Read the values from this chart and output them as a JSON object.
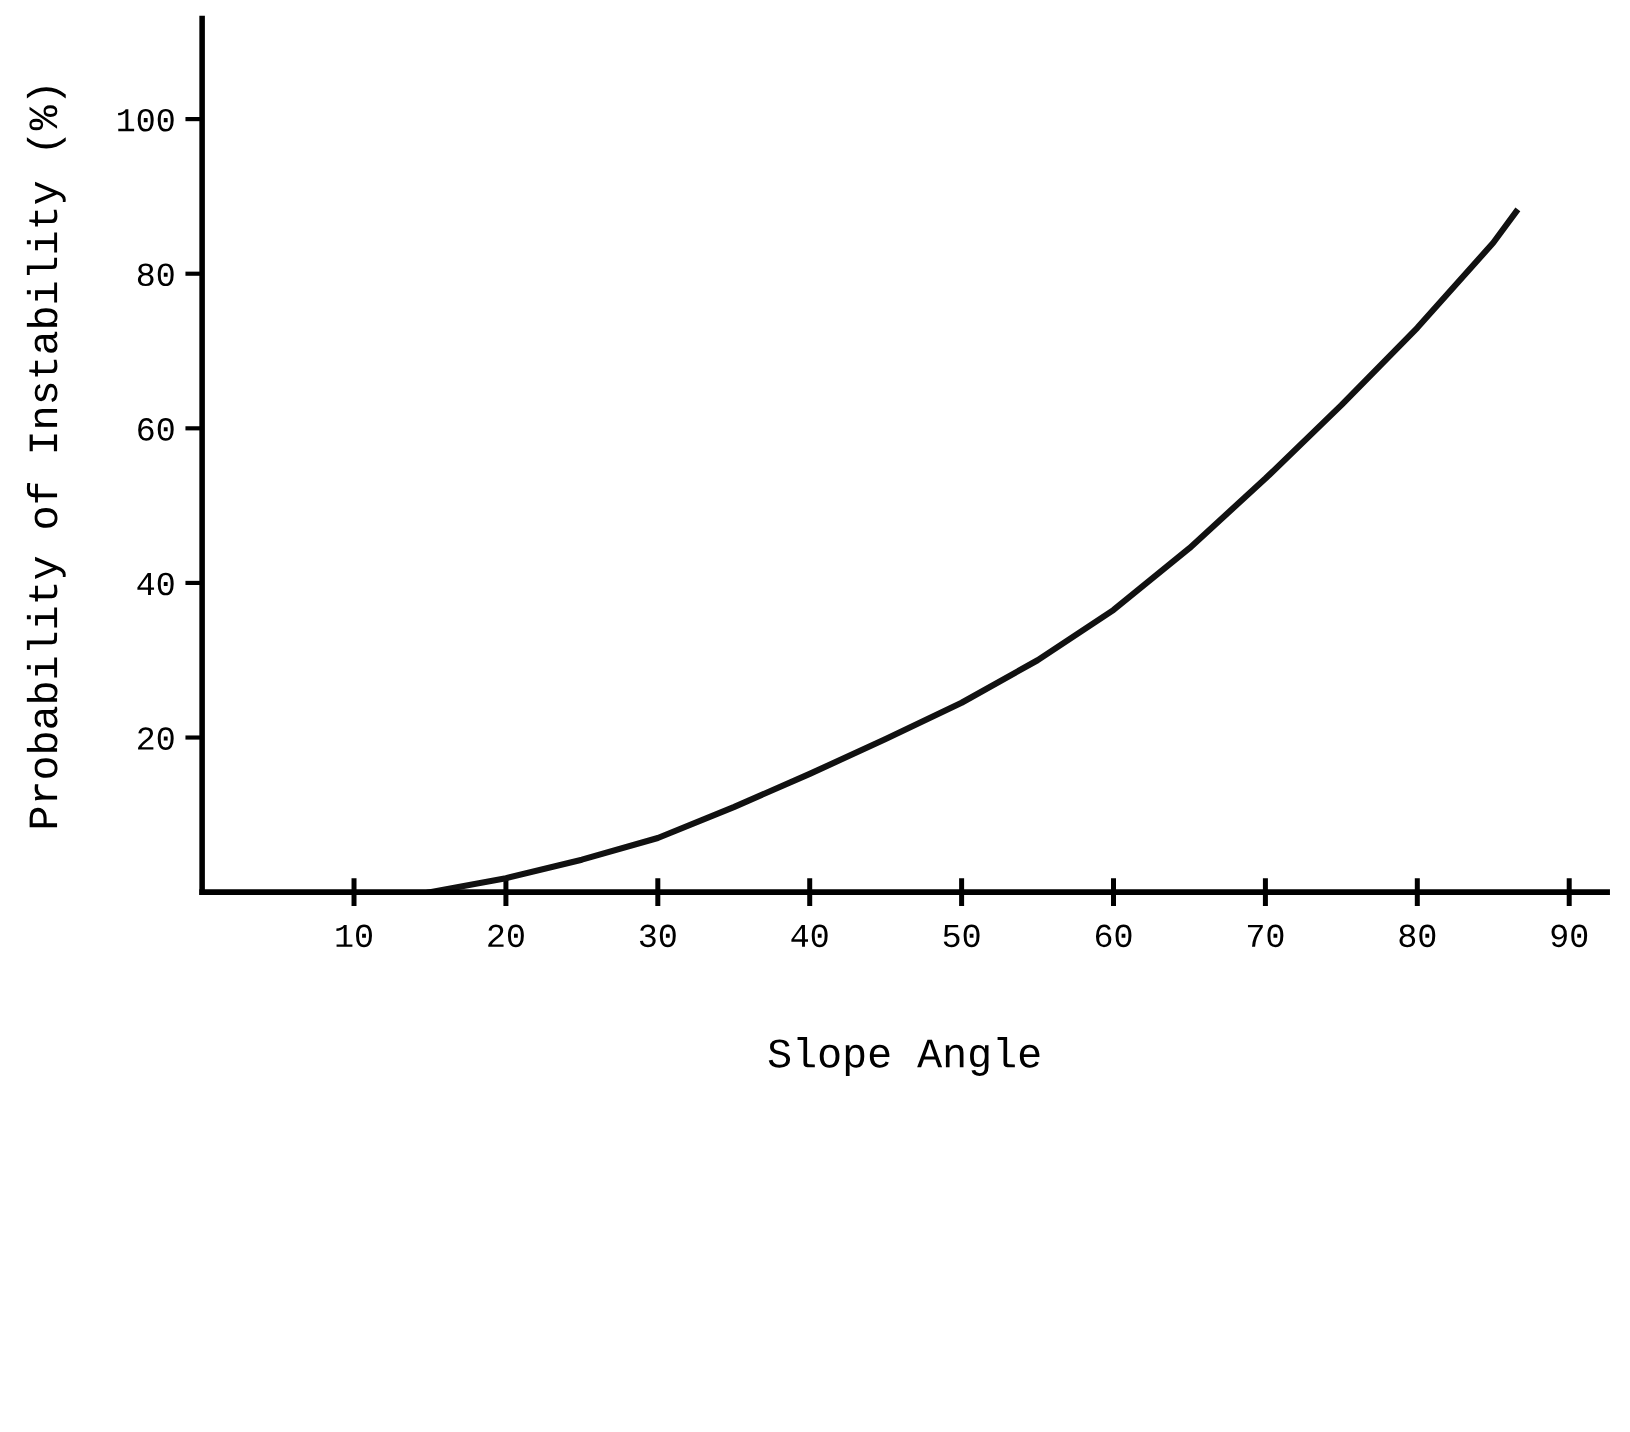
{
  "chart_data": {
    "type": "line",
    "xlabel": "Slope Angle",
    "ylabel": "Probability of Instability (%)",
    "x": [
      15,
      20,
      25,
      30,
      35,
      40,
      45,
      50,
      55,
      60,
      65,
      70,
      75,
      80,
      85,
      86.5
    ],
    "series": [
      {
        "color": "#111111",
        "values": [
          0,
          1.8,
          4.2,
          7,
          11,
          15.3,
          19.8,
          24.5,
          30,
          36.5,
          44.5,
          53.5,
          63,
          73,
          84,
          88
        ]
      }
    ],
    "xlim": [
      0,
      92.5
    ],
    "ylim": [
      0,
      113
    ],
    "xticks": [
      10,
      20,
      30,
      40,
      50,
      60,
      70,
      80,
      90
    ],
    "yticks": [
      20,
      40,
      60,
      80,
      100
    ],
    "grid": false,
    "legend": false,
    "marker": "none",
    "line_style": "solid"
  }
}
